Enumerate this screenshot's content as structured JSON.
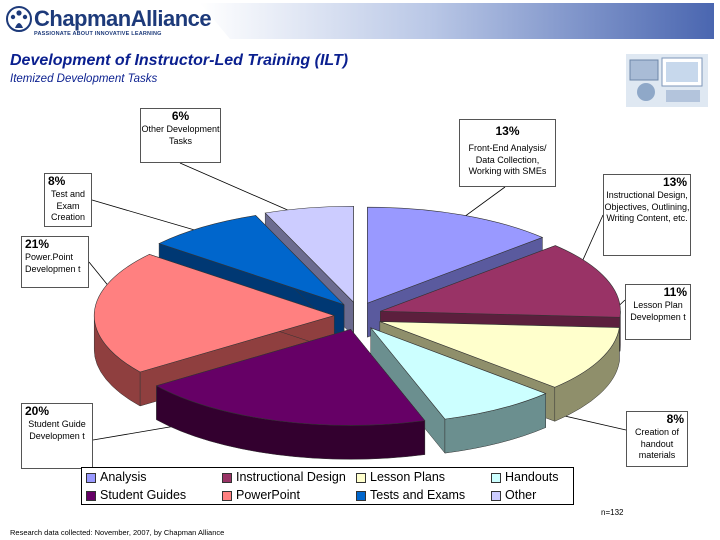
{
  "brand": {
    "name": "ChapmanAlliance",
    "tagline": "PASSIONATE ABOUT INNOVATIVE LEARNING",
    "accent_color": "#1d3a7a"
  },
  "title": "Development of Instructor-Led Training (ILT)",
  "subtitle": "Itemized Development Tasks",
  "photo_icon": "computer-collage-image",
  "chart_data": {
    "type": "pie",
    "style": "exploded-3d",
    "slices": [
      {
        "name": "Analysis",
        "value": 13,
        "pct_label": "13%",
        "description": "Front-End Analysis/ Data Collection, Working with SMEs",
        "color": "#9999ff",
        "side": "#5a5a9e"
      },
      {
        "name": "Instructional Design",
        "value": 13,
        "pct_label": "13%",
        "description": "Instructional Design, Objectives, Outlining, Writing Content, etc.",
        "color": "#993366",
        "side": "#5c1f3d"
      },
      {
        "name": "Lesson Plans",
        "value": 11,
        "pct_label": "11%",
        "description": "Lesson Plan Developmen t",
        "color": "#ffffcc",
        "side": "#8f8f6b"
      },
      {
        "name": "Handouts",
        "value": 8,
        "pct_label": "8%",
        "description": "Creation of handout materials",
        "color": "#ccffff",
        "side": "#6b8f8f"
      },
      {
        "name": "Student Guides",
        "value": 20,
        "pct_label": "20%",
        "description": "Student Guide Developmen t",
        "color": "#660066",
        "side": "#33002f"
      },
      {
        "name": "PowerPoint",
        "value": 21,
        "pct_label": "21%",
        "description": "Power.Point Developmen t",
        "color": "#ff8080",
        "side": "#8f3f3f"
      },
      {
        "name": "Tests and Exams",
        "value": 8,
        "pct_label": "8%",
        "description": "Test and Exam Creation",
        "color": "#0066cc",
        "side": "#003873"
      },
      {
        "name": "Other",
        "value": 6,
        "pct_label": "6%",
        "description": "Other Development Tasks",
        "color": "#ccccff",
        "side": "#6b6b8f"
      }
    ],
    "legend": [
      "Analysis",
      "Instructional Design",
      "Lesson Plans",
      "Handouts",
      "Student Guides",
      "PowerPoint",
      "Tests and Exams",
      "Other"
    ],
    "legend_position": "bottom"
  },
  "sample_note": "n=132",
  "footer": "Research data collected: November, 2007, by Chapman Alliance"
}
